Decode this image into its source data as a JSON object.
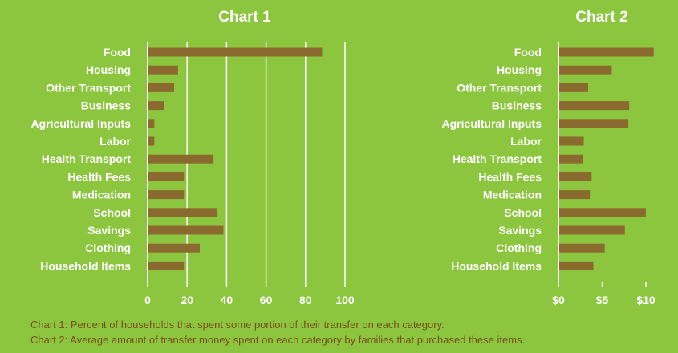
{
  "colors": {
    "background": "#8cc63f",
    "bar": "#8b6a2f",
    "text": "#ffffff",
    "caption": "#7a4e1e",
    "grid": "#ffffff"
  },
  "chart_data": [
    {
      "type": "bar",
      "orientation": "horizontal",
      "title": "Chart 1",
      "categories": [
        "Food",
        "Housing",
        "Other Transport",
        "Business",
        "Agricultural Inputs",
        "Labor",
        "Health Transport",
        "Health Fees",
        "Medication",
        "School",
        "Savings",
        "Clothing",
        "Household Items"
      ],
      "values": [
        88,
        15,
        13,
        8,
        3,
        3,
        33,
        18,
        18,
        35,
        38,
        26,
        18
      ],
      "xlim": [
        0,
        100
      ],
      "xticks": [
        0,
        20,
        40,
        60,
        80,
        100
      ],
      "xtick_labels": [
        "0",
        "20",
        "40",
        "60",
        "80",
        "100"
      ],
      "grid": true
    },
    {
      "type": "bar",
      "orientation": "horizontal",
      "title": "Chart 2",
      "categories": [
        "Food",
        "Housing",
        "Other Transport",
        "Business",
        "Agricultural Inputs",
        "Labor",
        "Health Transport",
        "Health Fees",
        "Medication",
        "School",
        "Savings",
        "Clothing",
        "Household Items"
      ],
      "values": [
        10.8,
        6.0,
        3.3,
        8.0,
        7.9,
        2.8,
        2.7,
        3.7,
        3.5,
        9.9,
        7.5,
        5.2,
        3.9
      ],
      "xlim": [
        0,
        10
      ],
      "xticks": [
        0,
        5,
        10
      ],
      "xtick_labels": [
        "$0",
        "$5",
        "$10"
      ],
      "grid": false
    }
  ],
  "captions": [
    "Chart 1: Percent of households that spent some portion of their transfer on each category.",
    "Chart 2: Average amount of transfer money spent on each category by families that purchased these items."
  ]
}
